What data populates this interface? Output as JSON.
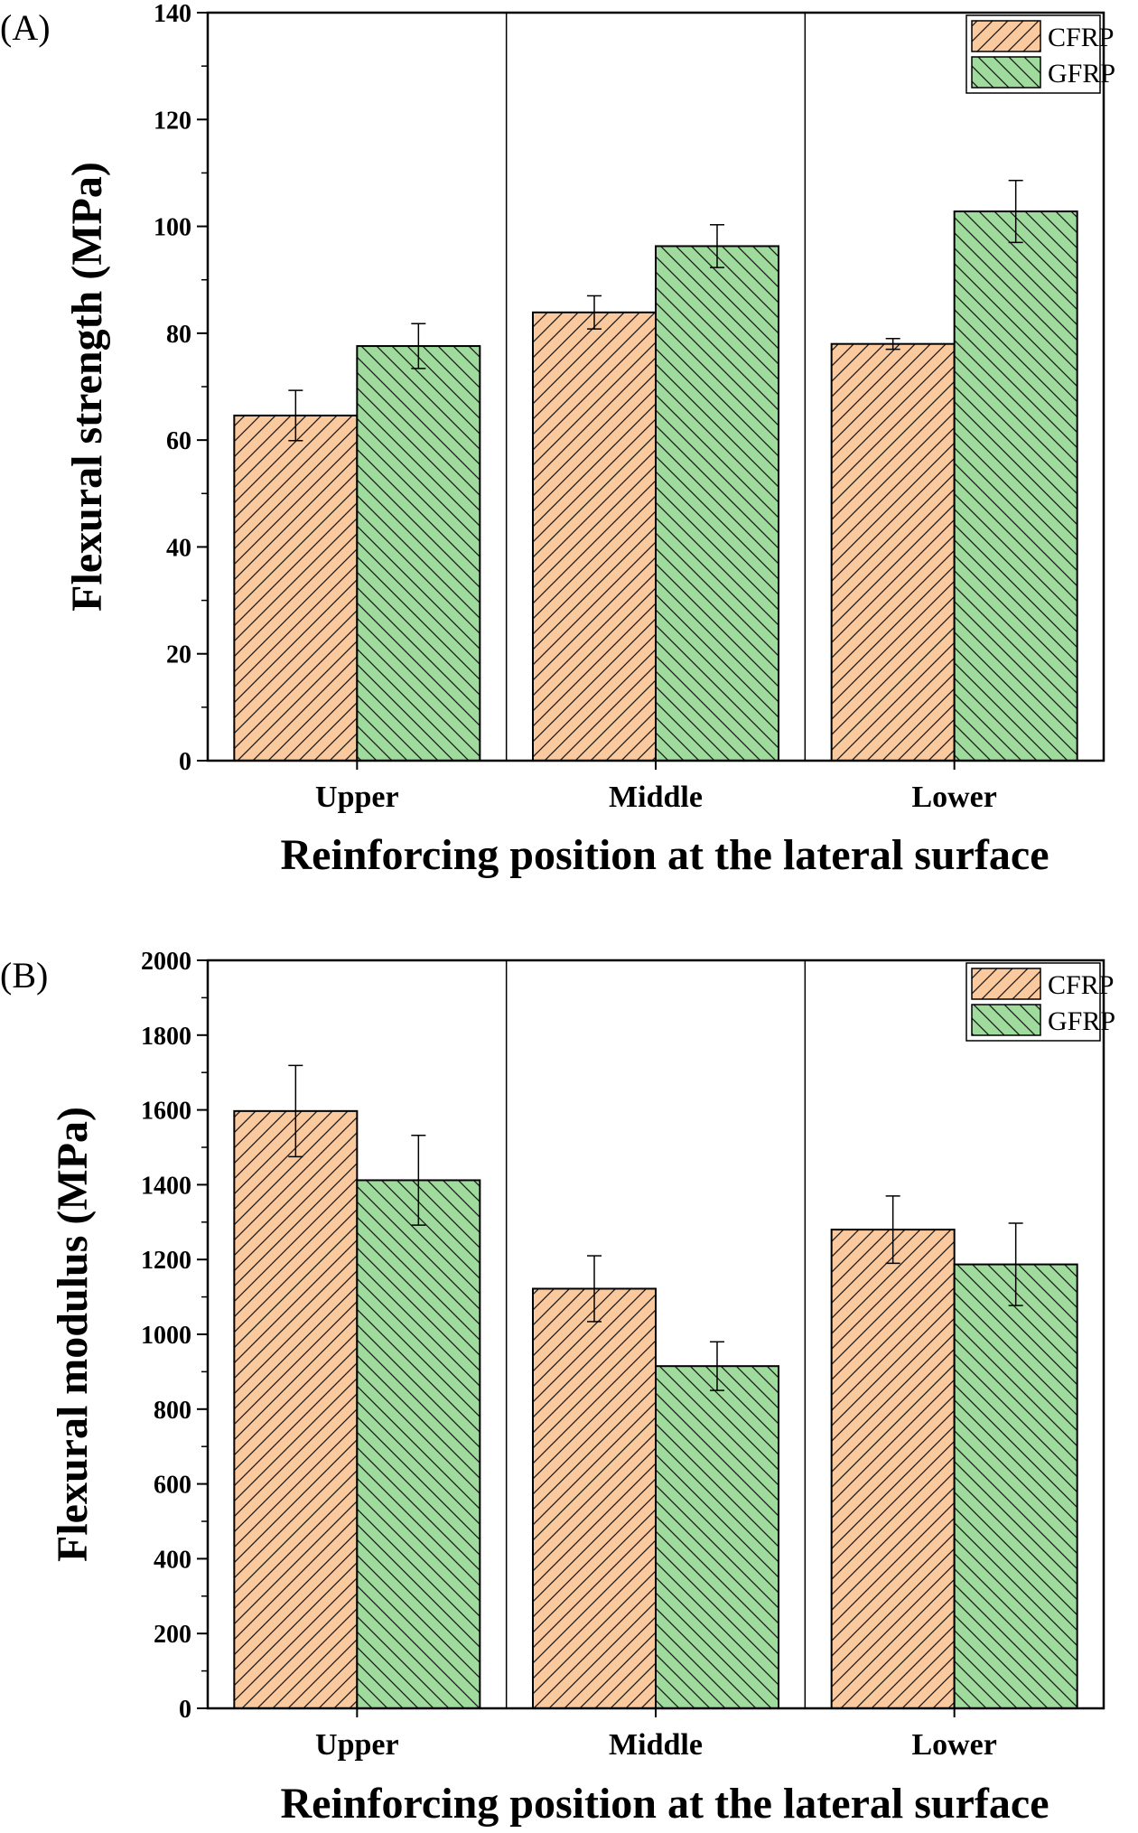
{
  "colors": {
    "cfrp_fill": "#fbc99e",
    "gfrp_fill": "#9fdb9c",
    "hatch": "#1a1a1a",
    "axis": "#000000"
  },
  "chart_data": [
    {
      "type": "bar",
      "panel_label": "(A)",
      "categories": [
        "Upper",
        "Middle",
        "Lower"
      ],
      "series": [
        {
          "name": "CFRP",
          "values": [
            64.6,
            83.9,
            78.0
          ],
          "error": [
            4.7,
            3.1,
            1.0
          ],
          "hatch": "forward"
        },
        {
          "name": "GFRP",
          "values": [
            77.6,
            96.3,
            102.8
          ],
          "error": [
            4.2,
            4.0,
            5.8
          ],
          "hatch": "backward"
        }
      ],
      "xlabel": "Reinforcing position at the lateral surface",
      "ylabel": "Flexural strength (MPa)",
      "ylim": [
        0,
        140
      ],
      "yticks": [
        0,
        20,
        40,
        60,
        80,
        100,
        120,
        140
      ],
      "grid": false,
      "category_separators": true,
      "legend": "top-right"
    },
    {
      "type": "bar",
      "panel_label": "(B)",
      "categories": [
        "Upper",
        "Middle",
        "Lower"
      ],
      "series": [
        {
          "name": "CFRP",
          "values": [
            1597,
            1122,
            1280
          ],
          "error": [
            122,
            88,
            90
          ],
          "hatch": "forward"
        },
        {
          "name": "GFRP",
          "values": [
            1412,
            915,
            1187
          ],
          "error": [
            120,
            65,
            110
          ],
          "hatch": "backward"
        }
      ],
      "xlabel": "Reinforcing position at the lateral surface",
      "ylabel": "Flexural modulus (MPa)",
      "ylim": [
        0,
        2000
      ],
      "yticks": [
        0,
        200,
        400,
        600,
        800,
        1000,
        1200,
        1400,
        1600,
        1800,
        2000
      ],
      "grid": false,
      "category_separators": true,
      "legend": "top-right"
    }
  ]
}
